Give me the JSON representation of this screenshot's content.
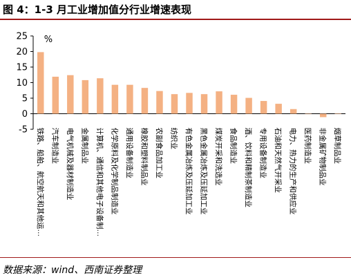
{
  "title": "图 4：1-3 月工业增加值分行业增速表现",
  "source": "数据来源：wind、西南证券整理",
  "chart_data": {
    "type": "bar",
    "unit": "%",
    "ylim": [
      -5,
      25
    ],
    "yticks": [
      -5,
      0,
      5,
      10,
      15,
      20,
      25
    ],
    "grid": false,
    "bar_color": "#F4B183",
    "categories": [
      "铁路、船舶、航空航天和其他运…",
      "汽车制造业",
      "电气机械及器材制造业",
      "金属制品业",
      "计算机、通信和其他电子设备制…",
      "化学原料及化学制品制造业",
      "通用设备制造业",
      "橡胶和塑料制品业",
      "农副食品加工业",
      "纺织业",
      "有色金属冶炼及压延加工业",
      "黑色金属冶炼及压延加工业",
      "煤炭开采和洗选业",
      "食品制造业",
      "酒、饮料和精制茶制造业",
      "专用设备制造业",
      "石油和天然气开采业",
      "电力、热力的生产和供应业",
      "医药制造业",
      "非金属矿物制品业",
      "烟草制品业"
    ],
    "values": [
      19.8,
      11.9,
      12.4,
      10.8,
      11.4,
      9.3,
      9.3,
      8.3,
      7.3,
      6.3,
      6.7,
      6.3,
      7.2,
      6.1,
      5.1,
      4.1,
      3.2,
      1.5,
      -0.1,
      -1.1,
      0.1
    ]
  }
}
